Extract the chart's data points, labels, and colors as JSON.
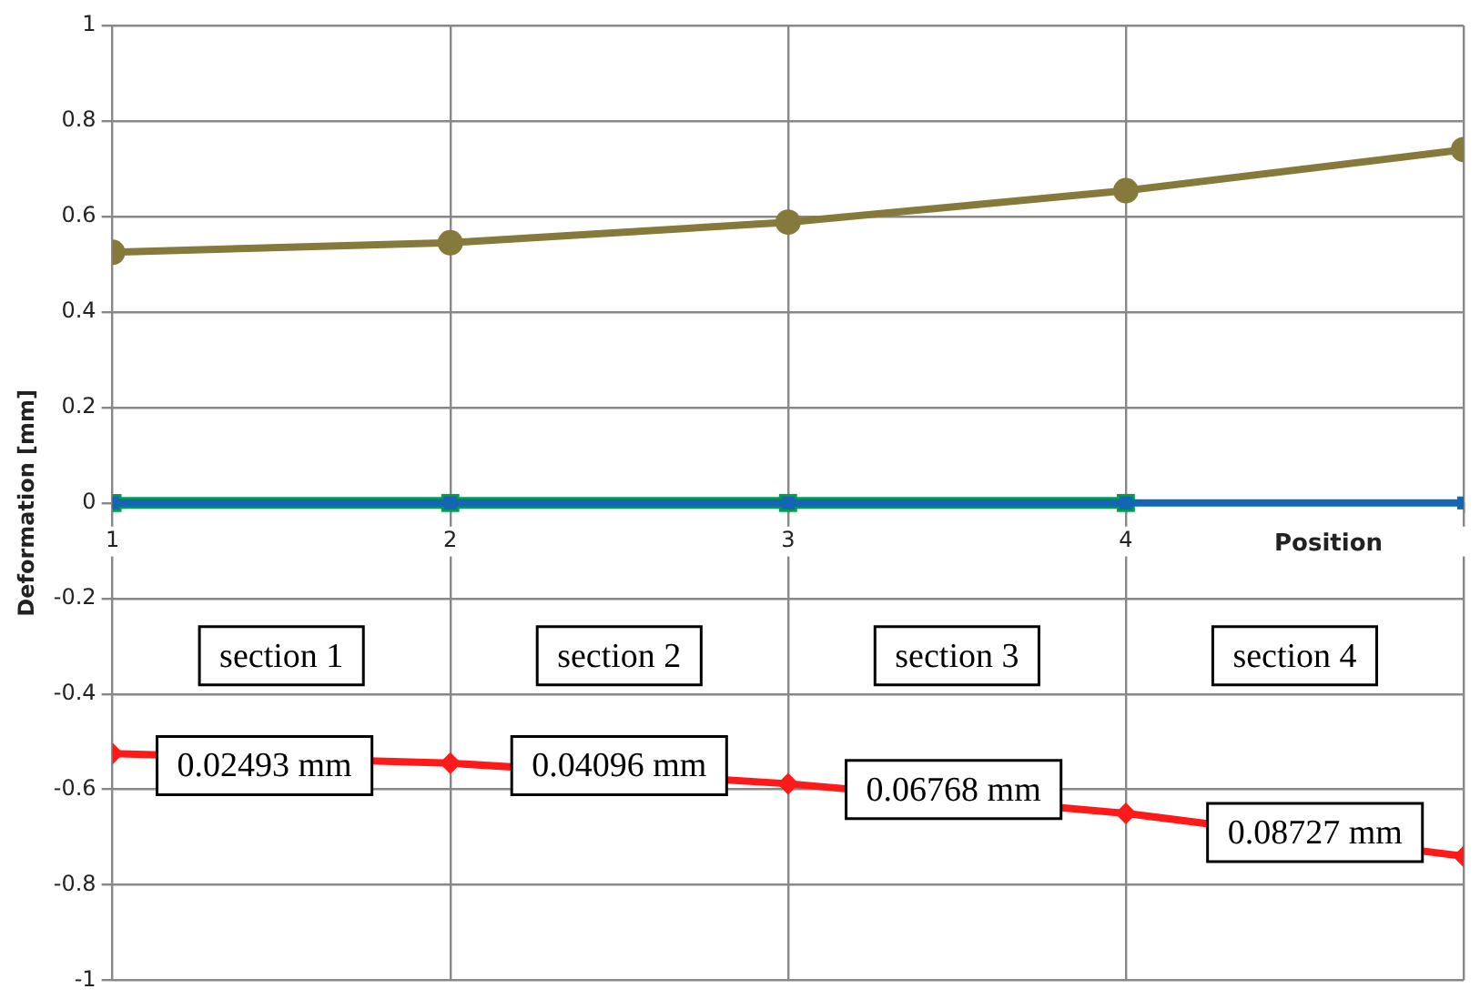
{
  "chart_data": {
    "type": "line",
    "xlabel": "Position",
    "ylabel": "Deformation [mm]",
    "xlim": [
      1,
      5
    ],
    "xticks": [
      1,
      2,
      3,
      4,
      {
        "value": 5,
        "label": null
      }
    ],
    "ylim": [
      -1,
      1
    ],
    "yticks": [
      -1,
      -0.8,
      -0.6,
      -0.4,
      -0.2,
      0,
      0.2,
      0.4,
      0.6,
      0.8,
      1
    ],
    "grid": true,
    "legend": false,
    "line_style": "solid",
    "series": [
      {
        "color": "#857a3c",
        "marker": "circle",
        "x": [
          1,
          2,
          3,
          4,
          5
        ],
        "values": [
          0.525,
          0.545,
          0.588,
          0.654,
          0.74
        ]
      },
      {
        "color": "#00a04a",
        "marker": "square",
        "x": [
          1,
          2,
          3,
          4
        ],
        "values": [
          0,
          0,
          0,
          0
        ]
      },
      {
        "color": "#1565b5",
        "marker": "square",
        "x": [
          1,
          2,
          3,
          4,
          5
        ],
        "values": [
          0,
          0,
          0,
          0,
          0
        ]
      },
      {
        "color": "#ff1a1a",
        "marker": "diamond",
        "x": [
          1,
          2,
          3,
          4,
          5
        ],
        "values": [
          -0.525,
          -0.545,
          -0.588,
          -0.65,
          -0.74
        ]
      }
    ],
    "annotations": [
      "section 1",
      "section 2",
      "section 3",
      "section 4",
      {
        "text": "0.02493 mm",
        "x": 1.45,
        "y": -0.55
      },
      {
        "text": "0.04096 mm",
        "x": 2.5,
        "y": -0.55
      },
      {
        "text": "0.06768 mm",
        "x": 3.49,
        "y": -0.6
      },
      {
        "text": "0.08727 mm",
        "x": 4.56,
        "y": -0.69
      }
    ]
  }
}
